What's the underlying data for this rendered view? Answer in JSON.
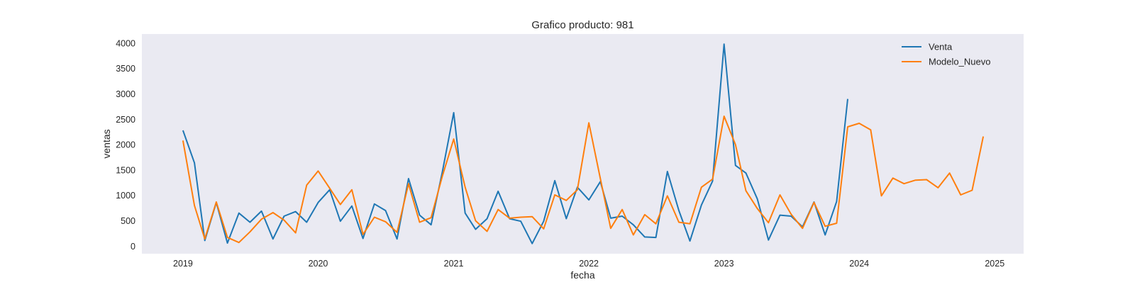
{
  "chart_data": {
    "type": "line",
    "title": "Grafico producto: 981",
    "xlabel": "fecha",
    "ylabel": "ventas",
    "xlim": [
      "2018-09-12",
      "2025-03-20"
    ],
    "ylim": [
      -150,
      4180
    ],
    "x_ticks": [
      "2019",
      "2020",
      "2021",
      "2022",
      "2023",
      "2024",
      "2025"
    ],
    "y_ticks": [
      0,
      500,
      1000,
      1500,
      2000,
      2500,
      3000,
      3500,
      4000
    ],
    "grid": false,
    "legend_position": "top-right",
    "series": [
      {
        "name": "Venta",
        "color": "#1f77b4",
        "x": [
          "2019-01",
          "2019-02",
          "2019-03",
          "2019-04",
          "2019-05",
          "2019-06",
          "2019-07",
          "2019-08",
          "2019-09",
          "2019-10",
          "2019-11",
          "2019-12",
          "2020-01",
          "2020-02",
          "2020-03",
          "2020-04",
          "2020-05",
          "2020-06",
          "2020-07",
          "2020-08",
          "2020-09",
          "2020-10",
          "2020-11",
          "2020-12",
          "2021-01",
          "2021-02",
          "2021-03",
          "2021-04",
          "2021-05",
          "2021-06",
          "2021-07",
          "2021-08",
          "2021-09",
          "2021-10",
          "2021-11",
          "2021-12",
          "2022-01",
          "2022-02",
          "2022-03",
          "2022-04",
          "2022-05",
          "2022-06",
          "2022-07",
          "2022-08",
          "2022-09",
          "2022-10",
          "2022-11",
          "2022-12",
          "2023-01",
          "2023-02",
          "2023-03",
          "2023-04",
          "2023-05",
          "2023-06",
          "2023-07",
          "2023-08",
          "2023-09",
          "2023-10",
          "2023-11",
          "2023-12"
        ],
        "values": [
          2280,
          1640,
          110,
          860,
          60,
          650,
          470,
          690,
          140,
          590,
          680,
          470,
          860,
          1110,
          490,
          790,
          150,
          830,
          700,
          140,
          1330,
          610,
          420,
          1450,
          2630,
          650,
          330,
          540,
          1080,
          540,
          490,
          50,
          490,
          1290,
          540,
          1160,
          910,
          1270,
          550,
          590,
          420,
          180,
          170,
          1470,
          700,
          100,
          810,
          1280,
          3980,
          1590,
          1440,
          930,
          120,
          610,
          590,
          380,
          870,
          220,
          880,
          2900
        ]
      },
      {
        "name": "Modelo_Nuevo",
        "color": "#ff7f0e",
        "x": [
          "2019-01",
          "2019-02",
          "2019-03",
          "2019-04",
          "2019-05",
          "2019-06",
          "2019-07",
          "2019-08",
          "2019-09",
          "2019-10",
          "2019-11",
          "2019-12",
          "2020-01",
          "2020-02",
          "2020-03",
          "2020-04",
          "2020-05",
          "2020-06",
          "2020-07",
          "2020-08",
          "2020-09",
          "2020-10",
          "2020-11",
          "2020-12",
          "2021-01",
          "2021-02",
          "2021-03",
          "2021-04",
          "2021-05",
          "2021-06",
          "2021-07",
          "2021-08",
          "2021-09",
          "2021-10",
          "2021-11",
          "2021-12",
          "2022-01",
          "2022-02",
          "2022-03",
          "2022-04",
          "2022-05",
          "2022-06",
          "2022-07",
          "2022-08",
          "2022-09",
          "2022-10",
          "2022-11",
          "2022-12",
          "2023-01",
          "2023-02",
          "2023-03",
          "2023-04",
          "2023-05",
          "2023-06",
          "2023-07",
          "2023-08",
          "2023-09",
          "2023-10",
          "2023-11",
          "2023-12",
          "2024-01",
          "2024-02",
          "2024-03",
          "2024-04",
          "2024-05",
          "2024-06",
          "2024-07",
          "2024-08",
          "2024-09",
          "2024-10",
          "2024-11",
          "2024-12"
        ],
        "values": [
          2080,
          800,
          140,
          870,
          170,
          70,
          280,
          530,
          660,
          510,
          260,
          1200,
          1480,
          1140,
          820,
          1110,
          230,
          570,
          480,
          270,
          1230,
          470,
          560,
          1370,
          2110,
          1160,
          500,
          290,
          720,
          550,
          570,
          580,
          340,
          1010,
          900,
          1110,
          2430,
          1330,
          350,
          720,
          220,
          620,
          440,
          990,
          470,
          440,
          1160,
          1320,
          2560,
          2000,
          1090,
          740,
          460,
          1010,
          630,
          350,
          860,
          390,
          450,
          2350,
          2420,
          2290,
          990,
          1340,
          1230,
          1300,
          1310,
          1150,
          1440,
          1010,
          1100,
          2160
        ]
      }
    ]
  }
}
